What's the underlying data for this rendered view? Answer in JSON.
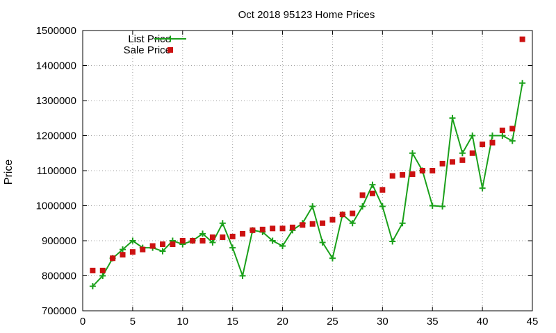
{
  "chart_data": {
    "type": "line",
    "title": "Oct 2018 95123 Home Prices",
    "xlabel": "",
    "ylabel": "Price",
    "xlim": [
      0,
      45
    ],
    "ylim": [
      700000,
      1500000
    ],
    "x_ticks": [
      0,
      5,
      10,
      15,
      20,
      25,
      30,
      35,
      40,
      45
    ],
    "y_ticks": [
      700000,
      800000,
      900000,
      1000000,
      1100000,
      1200000,
      1300000,
      1400000,
      1500000
    ],
    "grid": true,
    "legend_position": "top-left",
    "series": [
      {
        "name": "List Price",
        "style": "line-with-plus-markers",
        "color": "#1aa01a",
        "x": [
          1,
          2,
          3,
          4,
          5,
          6,
          7,
          8,
          9,
          10,
          11,
          12,
          13,
          14,
          15,
          16,
          17,
          18,
          19,
          20,
          21,
          22,
          23,
          24,
          25,
          26,
          27,
          28,
          29,
          30,
          31,
          32,
          33,
          34,
          35,
          36,
          37,
          38,
          39,
          40,
          41,
          42,
          43,
          44
        ],
        "values": [
          770000,
          800000,
          850000,
          875000,
          900000,
          880000,
          880000,
          870000,
          900000,
          890000,
          900000,
          920000,
          895000,
          950000,
          880000,
          800000,
          930000,
          925000,
          900000,
          885000,
          930000,
          950000,
          998000,
          895000,
          850000,
          975000,
          950000,
          998000,
          1060000,
          998000,
          898000,
          950000,
          1150000,
          1100000,
          1000000,
          998000,
          1250000,
          1150000,
          1200000,
          1050000,
          1200000,
          1200000,
          1185000,
          1350000
        ]
      },
      {
        "name": "Sale Price",
        "style": "square-markers",
        "color": "#cc1111",
        "x": [
          1,
          2,
          3,
          4,
          5,
          6,
          7,
          8,
          9,
          10,
          11,
          12,
          13,
          14,
          15,
          16,
          17,
          18,
          19,
          20,
          21,
          22,
          23,
          24,
          25,
          26,
          27,
          28,
          29,
          30,
          31,
          32,
          33,
          34,
          35,
          36,
          37,
          38,
          39,
          40,
          41,
          42,
          43,
          44
        ],
        "values": [
          815000,
          815000,
          850000,
          860000,
          868000,
          875000,
          885000,
          890000,
          890000,
          900000,
          900000,
          900000,
          910000,
          910000,
          912000,
          920000,
          930000,
          932000,
          935000,
          935000,
          938000,
          945000,
          948000,
          950000,
          960000,
          975000,
          978000,
          1030000,
          1035000,
          1045000,
          1085000,
          1088000,
          1090000,
          1100000,
          1100000,
          1120000,
          1125000,
          1130000,
          1150000,
          1175000,
          1180000,
          1215000,
          1220000,
          1475000
        ]
      }
    ]
  }
}
